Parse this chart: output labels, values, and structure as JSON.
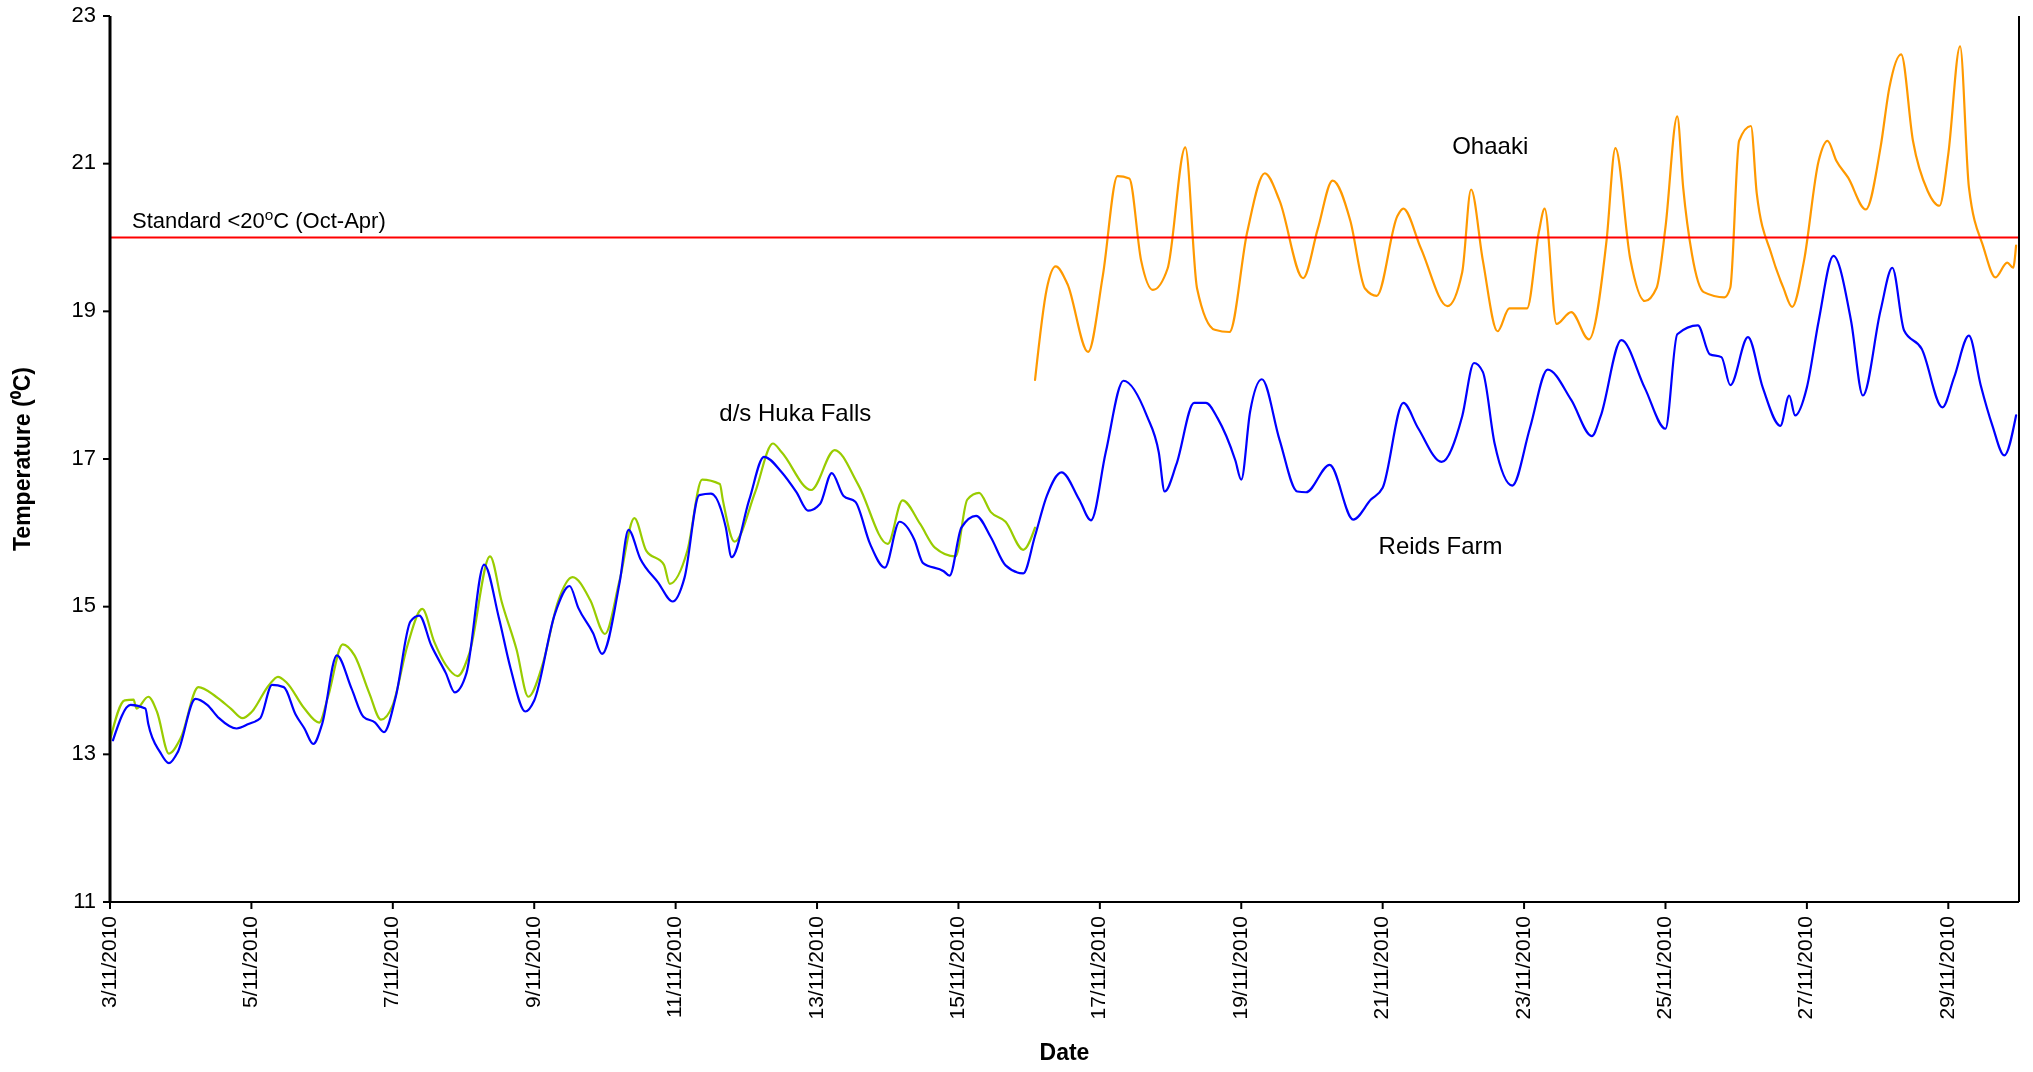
{
  "chart_data": {
    "type": "line",
    "xlabel": "Date",
    "ylabel": "Temperature (⁰C)",
    "xlim": [
      "2010-11-03",
      "2010-11-30"
    ],
    "xticks": [
      {
        "value": "2010-11-03",
        "label": "3/11/2010"
      },
      {
        "value": "2010-11-05",
        "label": "5/11/2010"
      },
      {
        "value": "2010-11-07",
        "label": "7/11/2010"
      },
      {
        "value": "2010-11-09",
        "label": "9/11/2010"
      },
      {
        "value": "2010-11-11",
        "label": "11/11/2010"
      },
      {
        "value": "2010-11-13",
        "label": "13/11/2010"
      },
      {
        "value": "2010-11-15",
        "label": "15/11/2010"
      },
      {
        "value": "2010-11-17",
        "label": "17/11/2010"
      },
      {
        "value": "2010-11-19",
        "label": "19/11/2010"
      },
      {
        "value": "2010-11-21",
        "label": "21/11/2010"
      },
      {
        "value": "2010-11-23",
        "label": "23/11/2010"
      },
      {
        "value": "2010-11-25",
        "label": "25/11/2010"
      },
      {
        "value": "2010-11-27",
        "label": "27/11/2010"
      },
      {
        "value": "2010-11-29",
        "label": "29/11/2010"
      }
    ],
    "ylim": [
      11,
      23
    ],
    "yticks": [
      11,
      13,
      15,
      17,
      19,
      21,
      23
    ],
    "grid": false,
    "marker": "none",
    "line_style": "solid",
    "ref_lines": [
      {
        "axis": "y",
        "value": 20,
        "label": "Standard <20$^{o}$C (Oct-Apr)",
        "color": "#ff0000"
      }
    ],
    "annotations": [
      "d/s Huka Falls",
      "Ohaaki",
      "Reids Farm"
    ],
    "series": [
      {
        "color": "#99cc00",
        "x": [
          "2010-11-03T00:00",
          "2010-11-03T05:00",
          "2010-11-03T08:00",
          "2010-11-03T09:00",
          "2010-11-03T13:00",
          "2010-11-03T16:00",
          "2010-11-03T20:00",
          "2010-11-04T00:00",
          "2010-11-04T06:00",
          "2010-11-04T12:00",
          "2010-11-04T17:00",
          "2010-11-04T21:00",
          "2010-11-05T00:00",
          "2010-11-05T06:00",
          "2010-11-05T09:00",
          "2010-11-05T12:00",
          "2010-11-05T18:00",
          "2010-11-05T23:00",
          "2010-11-06T02:00",
          "2010-11-06T07:00",
          "2010-11-06T11:00",
          "2010-11-06T16:00",
          "2010-11-06T20:00",
          "2010-11-07T00:00",
          "2010-11-07T05:00",
          "2010-11-07T10:00",
          "2010-11-07T14:00",
          "2010-11-07T18:00",
          "2010-11-07T22:00",
          "2010-11-08T02:00",
          "2010-11-08T09:00",
          "2010-11-08T13:00",
          "2010-11-08T18:00",
          "2010-11-08T22:00",
          "2010-11-09T03:00",
          "2010-11-09T08:00",
          "2010-11-09T13:00",
          "2010-11-09T19:00",
          "2010-11-10T00:00",
          "2010-11-10T05:00",
          "2010-11-10T10:00",
          "2010-11-10T14:00",
          "2010-11-10T20:00",
          "2010-11-10T22:00",
          "2010-11-11T04:00",
          "2010-11-11T09:00",
          "2010-11-11T15:00",
          "2010-11-11T16:00",
          "2010-11-11T20:00",
          "2010-11-12T03:00",
          "2010-11-12T09:00",
          "2010-11-12T12:00",
          "2010-11-12T22:00",
          "2010-11-13T06:00",
          "2010-11-13T14:00",
          "2010-11-14T00:00",
          "2010-11-14T05:00",
          "2010-11-14T11:00",
          "2010-11-14T16:00",
          "2010-11-14T23:00",
          "2010-11-15T03:00",
          "2010-11-15T07:00",
          "2010-11-15T11:00",
          "2010-11-15T16:00",
          "2010-11-15T22:00",
          "2010-11-16T02:00"
        ],
        "values": [
          13.19,
          13.73,
          13.74,
          13.62,
          13.78,
          13.57,
          13.01,
          13.22,
          13.91,
          13.78,
          13.62,
          13.49,
          13.57,
          13.94,
          14.05,
          13.97,
          13.62,
          13.43,
          13.78,
          14.49,
          14.34,
          13.83,
          13.47,
          13.67,
          14.48,
          14.97,
          14.53,
          14.21,
          14.06,
          14.37,
          15.68,
          15.06,
          14.42,
          13.78,
          14.24,
          15.06,
          15.4,
          15.09,
          14.63,
          15.36,
          16.2,
          15.76,
          15.57,
          15.31,
          15.76,
          16.72,
          16.66,
          16.45,
          15.88,
          16.55,
          17.21,
          17.09,
          16.58,
          17.12,
          16.65,
          15.85,
          16.44,
          16.12,
          15.8,
          15.68,
          16.45,
          16.54,
          16.28,
          16.15,
          15.77,
          16.07
        ]
      },
      {
        "color": "#0000ff",
        "x": [
          "2010-11-03T01:00",
          "2010-11-03T07:00",
          "2010-11-03T12:00",
          "2010-11-03T13:00",
          "2010-11-03T17:00",
          "2010-11-03T20:00",
          "2010-11-03T23:00",
          "2010-11-04T05:00",
          "2010-11-04T09:00",
          "2010-11-04T13:00",
          "2010-11-04T19:00",
          "2010-11-04T23:00",
          "2010-11-05T03:00",
          "2010-11-05T07:00",
          "2010-11-05T11:00",
          "2010-11-05T15:00",
          "2010-11-05T18:00",
          "2010-11-05T21:00",
          "2010-11-06T00:00",
          "2010-11-06T05:00",
          "2010-11-06T10:00",
          "2010-11-06T14:00",
          "2010-11-06T18:00",
          "2010-11-06T21:00",
          "2010-11-07T01:00",
          "2010-11-07T06:00",
          "2010-11-07T09:00",
          "2010-11-07T13:00",
          "2010-11-07T18:00",
          "2010-11-07T21:00",
          "2010-11-08T01:00",
          "2010-11-08T07:00",
          "2010-11-08T12:00",
          "2010-11-08T16:00",
          "2010-11-08T21:00",
          "2010-11-09T00:00",
          "2010-11-09T07:00",
          "2010-11-09T12:00",
          "2010-11-09T15:00",
          "2010-11-09T20:00",
          "2010-11-09T23:00",
          "2010-11-10T05:00",
          "2010-11-10T08:00",
          "2010-11-10T12:00",
          "2010-11-10T18:00",
          "2010-11-10T23:00",
          "2010-11-11T03:00",
          "2010-11-11T08:00",
          "2010-11-11T12:00",
          "2010-11-11T17:00",
          "2010-11-11T19:00",
          "2010-11-12T01:00",
          "2010-11-12T06:00",
          "2010-11-12T12:00",
          "2010-11-12T17:00",
          "2010-11-12T21:00",
          "2010-11-13T01:00",
          "2010-11-13T05:00",
          "2010-11-13T09:00",
          "2010-11-13T13:00",
          "2010-11-13T18:00",
          "2010-11-13T23:00",
          "2010-11-14T04:00",
          "2010-11-14T09:00",
          "2010-11-14T12:00",
          "2010-11-14T19:00",
          "2010-11-14T21:00",
          "2010-11-15T01:00",
          "2010-11-15T06:00",
          "2010-11-15T11:00",
          "2010-11-15T16:00",
          "2010-11-15T22:00",
          "2010-11-16T02:00",
          "2010-11-16T06:00",
          "2010-11-16T11:00",
          "2010-11-16T17:00",
          "2010-11-16T21:00",
          "2010-11-17T02:00",
          "2010-11-17T08:00",
          "2010-11-17T16:00",
          "2010-11-17T20:00",
          "2010-11-17T22:00",
          "2010-11-18T02:00",
          "2010-11-18T08:00",
          "2010-11-18T12:00",
          "2010-11-18T16:00",
          "2010-11-18T22:00",
          "2010-11-19T00:00",
          "2010-11-19T03:00",
          "2010-11-19T07:00",
          "2010-11-19T13:00",
          "2010-11-19T19:00",
          "2010-11-19T22:00",
          "2010-11-20T06:00",
          "2010-11-20T14:00",
          "2010-11-20T20:00",
          "2010-11-21T00:00",
          "2010-11-21T07:00",
          "2010-11-21T12:00",
          "2010-11-21T20:00",
          "2010-11-22T03:00",
          "2010-11-22T07:00",
          "2010-11-22T10:00",
          "2010-11-22T14:00",
          "2010-11-22T20:00",
          "2010-11-23T02:00",
          "2010-11-23T08:00",
          "2010-11-23T16:00",
          "2010-11-23T23:00",
          "2010-11-24T02:00",
          "2010-11-24T09:00",
          "2010-11-24T17:00",
          "2010-11-25T00:00",
          "2010-11-25T04:00",
          "2010-11-25T11:00",
          "2010-11-25T15:00",
          "2010-11-25T19:00",
          "2010-11-25T22:00",
          "2010-11-26T04:00",
          "2010-11-26T09:00",
          "2010-11-26T15:00",
          "2010-11-26T18:00",
          "2010-11-26T20:00",
          "2010-11-27T00:00",
          "2010-11-27T04:00",
          "2010-11-27T09:00",
          "2010-11-27T15:00",
          "2010-11-27T19:00",
          "2010-11-28T01:00",
          "2010-11-28T05:00",
          "2010-11-28T09:00",
          "2010-11-28T15:00",
          "2010-11-28T22:00",
          "2010-11-29T02:00",
          "2010-11-29T07:00",
          "2010-11-29T11:00",
          "2010-11-29T15:00",
          "2010-11-29T19:00",
          "2010-11-29T23:00"
        ],
        "values": [
          13.19,
          13.67,
          13.62,
          13.41,
          13.03,
          12.88,
          13.03,
          13.75,
          13.67,
          13.49,
          13.35,
          13.41,
          13.49,
          13.94,
          13.91,
          13.54,
          13.35,
          13.14,
          13.41,
          14.34,
          13.89,
          13.51,
          13.43,
          13.3,
          13.78,
          14.8,
          14.88,
          14.48,
          14.1,
          13.84,
          14.1,
          15.57,
          14.85,
          14.16,
          13.58,
          13.73,
          14.9,
          15.28,
          14.98,
          14.64,
          14.36,
          15.33,
          16.04,
          15.65,
          15.33,
          15.07,
          15.39,
          16.51,
          16.53,
          16.08,
          15.67,
          16.45,
          17.03,
          16.82,
          16.55,
          16.3,
          16.39,
          16.81,
          16.5,
          16.42,
          15.85,
          15.53,
          16.15,
          15.91,
          15.59,
          15.48,
          15.42,
          16.07,
          16.23,
          15.94,
          15.56,
          15.45,
          15.96,
          16.5,
          16.82,
          16.45,
          16.17,
          17.09,
          18.06,
          17.58,
          17.09,
          16.56,
          16.93,
          17.76,
          17.76,
          17.55,
          16.98,
          16.72,
          17.64,
          18.08,
          17.26,
          16.56,
          16.55,
          16.92,
          16.18,
          16.45,
          16.61,
          17.76,
          17.42,
          16.96,
          17.58,
          18.3,
          18.18,
          17.21,
          16.64,
          17.42,
          18.21,
          17.8,
          17.31,
          17.58,
          18.61,
          17.96,
          17.41,
          18.69,
          18.81,
          18.42,
          18.38,
          18.0,
          18.65,
          17.97,
          17.45,
          17.86,
          17.59,
          17.97,
          18.87,
          19.75,
          18.87,
          17.86,
          19.01,
          19.59,
          18.74,
          18.49,
          17.7,
          18.11,
          18.67,
          18.0,
          17.45,
          17.05,
          17.59
        ]
      },
      {
        "color": "#ff9900",
        "x": [
          "2010-11-16T02:00",
          "2010-11-16T06:00",
          "2010-11-16T09:00",
          "2010-11-16T13:00",
          "2010-11-16T20:00",
          "2010-11-17T01:00",
          "2010-11-17T06:00",
          "2010-11-17T10:00",
          "2010-11-17T14:00",
          "2010-11-17T18:00",
          "2010-11-17T23:00",
          "2010-11-18T05:00",
          "2010-11-18T09:00",
          "2010-11-18T15:00",
          "2010-11-18T20:00",
          "2010-11-19T02:00",
          "2010-11-19T08:00",
          "2010-11-19T13:00",
          "2010-11-19T21:00",
          "2010-11-20T02:00",
          "2010-11-20T07:00",
          "2010-11-20T13:00",
          "2010-11-20T18:00",
          "2010-11-20T22:00",
          "2010-11-21T05:00",
          "2010-11-21T07:00",
          "2010-11-21T13:00",
          "2010-11-21T22:00",
          "2010-11-22T03:00",
          "2010-11-22T06:00",
          "2010-11-22T10:00",
          "2010-11-22T15:00",
          "2010-11-22T19:00",
          "2010-11-23T01:00",
          "2010-11-23T05:00",
          "2010-11-23T07:00",
          "2010-11-23T11:00",
          "2010-11-23T16:00",
          "2010-11-23T22:00",
          "2010-11-24T04:00",
          "2010-11-24T07:00",
          "2010-11-24T12:00",
          "2010-11-24T17:00",
          "2010-11-24T21:00",
          "2010-11-25T00:00",
          "2010-11-25T04:00",
          "2010-11-25T06:00",
          "2010-11-25T09:00",
          "2010-11-25T13:00",
          "2010-11-25T20:00",
          "2010-11-25T22:00",
          "2010-11-26T01:00",
          "2010-11-26T05:00",
          "2010-11-26T07:00",
          "2010-11-26T12:00",
          "2010-11-26T16:00",
          "2010-11-26T19:00",
          "2010-11-26T23:00",
          "2010-11-27T04:00",
          "2010-11-27T07:00",
          "2010-11-27T10:00",
          "2010-11-27T14:00",
          "2010-11-27T20:00",
          "2010-11-28T01:00",
          "2010-11-28T04:00",
          "2010-11-28T08:00",
          "2010-11-28T12:00",
          "2010-11-28T17:00",
          "2010-11-28T21:00",
          "2010-11-29T00:00",
          "2010-11-29T04:00",
          "2010-11-29T07:00",
          "2010-11-29T12:00",
          "2010-11-29T16:00",
          "2010-11-29T20:00",
          "2010-11-29T22:00",
          "2010-11-29T23:00"
        ],
        "values": [
          18.07,
          19.31,
          19.61,
          19.37,
          18.45,
          19.48,
          20.83,
          20.8,
          19.69,
          19.29,
          19.58,
          21.22,
          19.31,
          18.75,
          18.72,
          20.07,
          20.87,
          20.5,
          19.45,
          20.12,
          20.77,
          20.23,
          19.31,
          19.21,
          20.29,
          20.39,
          19.85,
          19.07,
          19.53,
          20.65,
          19.69,
          18.73,
          19.04,
          19.04,
          20.07,
          20.39,
          18.83,
          18.99,
          18.62,
          19.96,
          21.21,
          19.72,
          19.14,
          19.32,
          20.14,
          21.64,
          20.68,
          19.77,
          19.26,
          19.19,
          19.32,
          21.31,
          21.51,
          20.59,
          19.77,
          19.32,
          19.06,
          19.68,
          21.04,
          21.31,
          21.04,
          20.81,
          20.38,
          21.22,
          22.03,
          22.48,
          21.31,
          20.63,
          20.43,
          21.13,
          22.59,
          20.68,
          19.86,
          19.46,
          19.66,
          19.59,
          19.89
        ]
      }
    ]
  }
}
